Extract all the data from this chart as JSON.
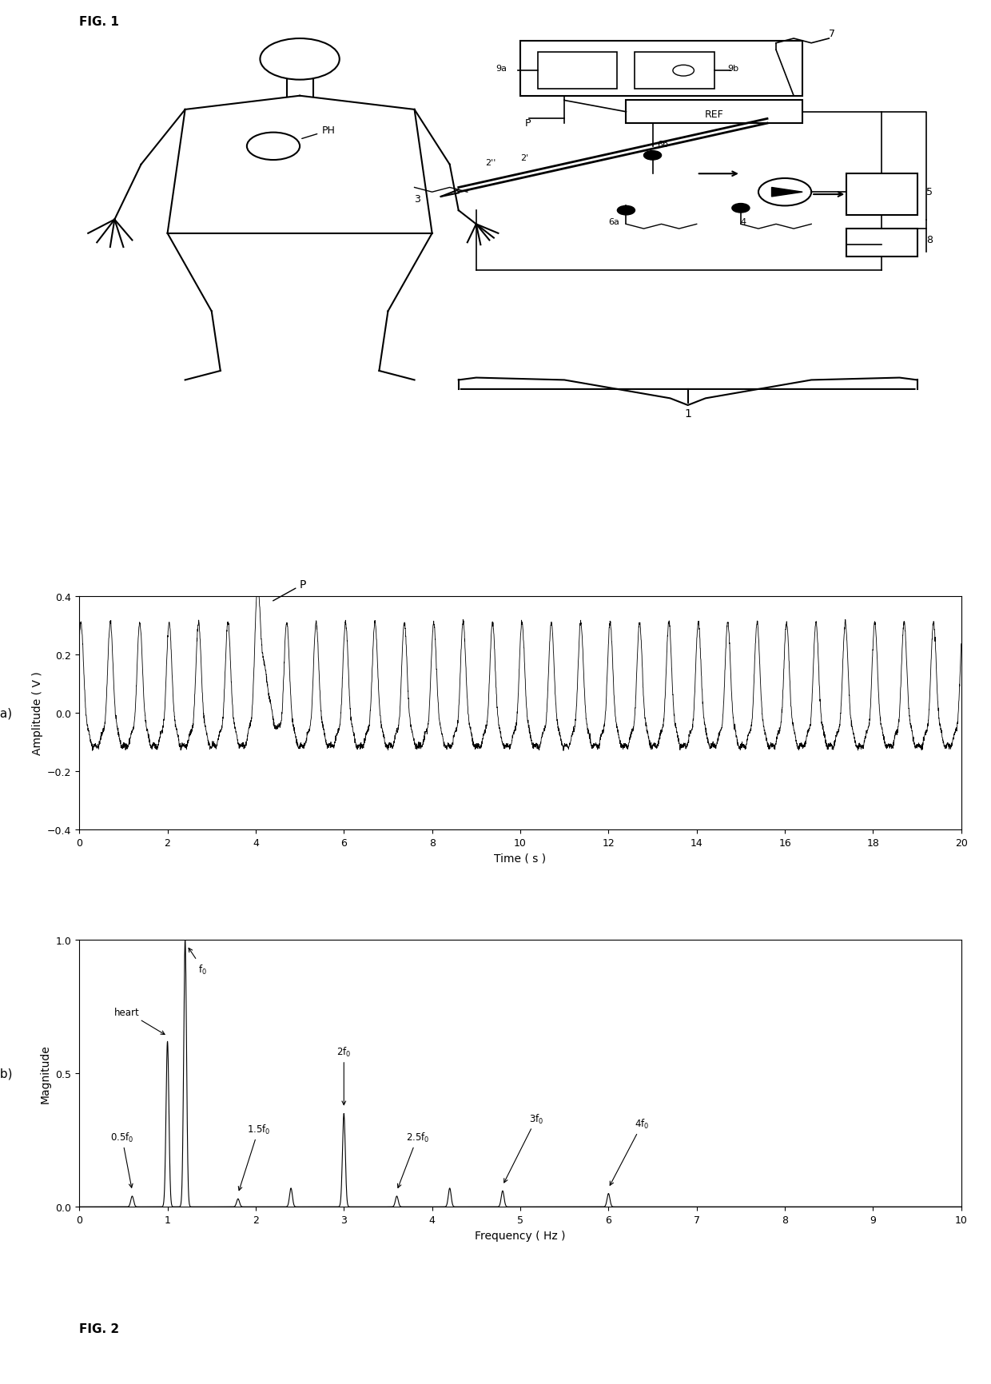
{
  "fig_width": 12.4,
  "fig_height": 17.33,
  "background_color": "#ffffff",
  "plot_a": {
    "xlim": [
      0,
      20
    ],
    "ylim": [
      -0.4,
      0.4
    ],
    "xlabel": "Time ( s )",
    "ylabel": "Amplitude ( V )",
    "yticks": [
      -0.4,
      -0.2,
      0,
      0.2,
      0.4
    ],
    "xticks": [
      0,
      2,
      4,
      6,
      8,
      10,
      12,
      14,
      16,
      18,
      20
    ],
    "signal_freq": 1.5,
    "signal_amp": 0.28,
    "pulse_time": 4.2,
    "pulse_amp": 0.42,
    "label_P": "P",
    "label_a": "(a)"
  },
  "plot_b": {
    "xlim": [
      0,
      10
    ],
    "ylim": [
      0,
      1
    ],
    "xlabel": "Frequency ( Hz )",
    "ylabel": "Magnitude",
    "xticks": [
      0,
      1,
      2,
      3,
      4,
      5,
      6,
      7,
      8,
      9,
      10
    ],
    "yticks": [
      0,
      0.5,
      1
    ],
    "f0": 1.2,
    "heart_freq": 1.0,
    "harmonics": [
      0.6,
      1.2,
      1.8,
      2.4,
      3.0,
      3.6,
      4.2,
      4.8,
      6.0
    ],
    "harmonic_amps": [
      0.04,
      1.0,
      0.03,
      0.07,
      0.35,
      0.04,
      0.07,
      0.06,
      0.05
    ],
    "heart_amp": 0.62,
    "label_b": "(b)"
  }
}
